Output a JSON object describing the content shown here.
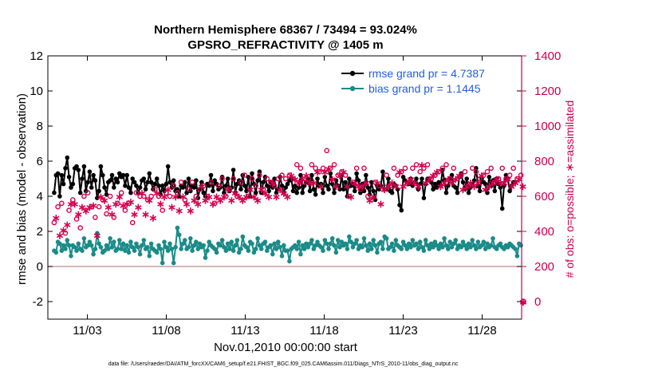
{
  "chart_data": {
    "type": "line",
    "title": "Northern Hemisphere 68367 / 73494 = 93.024%",
    "subtitle": "GPSRO_REFRACTIVITY @ 1405 m",
    "xlabel": "Nov.01,2010 00:00:00 start",
    "ylabel": "rmse and bias (model - observation)",
    "y2label": "# of obs: o=possible; ∗=assimilated",
    "footnote": "data file: /Users/raeder/DAI/ATM_forcXX/CAM6_setup/f.e21.FHIST_BGC.f09_025.CAM6assim.011/Diags_NTrS_2010-11/obs_diag_output.nc",
    "x_range_days": [
      0.5,
      30.5
    ],
    "ylim": [
      -3,
      12
    ],
    "y2lim": [
      -100,
      1400
    ],
    "x_ticks": [
      {
        "day": 3,
        "label": "11/03"
      },
      {
        "day": 8,
        "label": "11/08"
      },
      {
        "day": 13,
        "label": "11/13"
      },
      {
        "day": 18,
        "label": "11/18"
      },
      {
        "day": 23,
        "label": "11/23"
      },
      {
        "day": 28,
        "label": "11/28"
      }
    ],
    "y_ticks": [
      {
        "value": -2,
        "label": "-2"
      },
      {
        "value": 0,
        "label": "0"
      },
      {
        "value": 2,
        "label": "2"
      },
      {
        "value": 4,
        "label": "4"
      },
      {
        "value": 6,
        "label": "6"
      },
      {
        "value": 8,
        "label": "8"
      },
      {
        "value": 10,
        "label": "10"
      },
      {
        "value": 12,
        "label": "12"
      }
    ],
    "y2_ticks": [
      {
        "value": 0,
        "label": "0"
      },
      {
        "value": 200,
        "label": "200"
      },
      {
        "value": 400,
        "label": "400"
      },
      {
        "value": 600,
        "label": "600"
      },
      {
        "value": 800,
        "label": "800"
      },
      {
        "value": 1000,
        "label": "1000"
      },
      {
        "value": 1200,
        "label": "1200"
      },
      {
        "value": 1400,
        "label": "1400"
      }
    ],
    "zero_line_y": 0,
    "legend": {
      "placement": "top-right"
    },
    "series": [
      {
        "name": "rmse grand pr = 4.7387",
        "color": "#000000",
        "marker": "filled-circle",
        "axis": "left",
        "values": [
          4.2,
          5.2,
          5.3,
          4.0,
          5.2,
          4.7,
          5.6,
          6.2,
          5.1,
          4.5,
          4.7,
          5.6,
          5.7,
          5.5,
          4.2,
          5.0,
          5.7,
          4.3,
          4.8,
          5.4,
          4.5,
          5.2,
          4.9,
          3.9,
          4.3,
          5.7,
          5.2,
          4.5,
          4.1,
          4.8,
          4.9,
          5.2,
          4.5,
          5.0,
          4.8,
          5.3,
          5.1,
          5.2,
          4.6,
          5.2,
          4.5,
          4.2,
          5.0,
          4.8,
          4.6,
          4.2,
          4.5,
          4.9,
          5.0,
          4.4,
          4.8,
          5.3,
          4.8,
          4.4,
          4.7,
          5.0,
          4.6,
          4.1,
          4.6,
          4.3,
          4.7,
          5.7,
          4.8,
          4.5,
          4.9,
          4.3,
          4.4,
          4.0,
          4.6,
          4.5,
          4.8,
          4.2,
          5.0,
          4.3,
          4.6,
          4.5,
          4.9,
          3.9,
          4.4,
          4.8,
          4.2,
          4.0,
          4.7,
          4.6,
          5.2,
          4.3,
          4.9,
          4.7,
          4.4,
          4.5,
          5.1,
          4.2,
          4.6,
          5.0,
          4.3,
          4.5,
          5.5,
          4.2,
          4.7,
          4.9,
          4.4,
          5.2,
          4.6,
          4.3,
          5.1,
          4.0,
          5.3,
          4.7,
          4.2,
          4.9,
          5.4,
          4.2,
          4.8,
          5.1,
          4.6,
          4.3,
          4.8,
          4.5,
          5.0,
          4.2,
          4.4,
          5.1,
          4.6,
          4.2,
          4.5,
          4.7,
          4.9,
          5.0,
          4.3,
          4.6,
          4.2,
          4.5,
          5.2,
          4.2,
          4.6,
          4.8,
          5.0,
          4.3,
          5.2,
          4.4,
          4.1,
          5.0,
          4.6,
          4.7,
          4.2,
          5.1,
          4.6,
          4.4,
          5.3,
          4.7,
          4.2,
          4.9,
          4.6,
          4.4,
          5.2,
          4.4,
          4.8,
          4.0,
          5.0,
          4.6,
          4.7,
          4.3,
          5.3,
          4.9,
          4.2,
          4.7,
          4.3,
          5.2,
          4.5,
          4.1,
          4.8,
          4.3,
          3.8,
          4.6,
          4.4,
          4.6,
          5.4,
          4.4,
          4.4,
          5.0,
          4.3,
          4.2,
          4.7,
          4.6,
          4.4,
          3.5,
          3.2,
          5.1,
          4.9,
          4.8,
          4.7,
          5.0,
          4.6,
          4.8,
          5.0,
          4.4,
          4.7,
          5.0,
          3.9,
          4.7,
          5.0,
          4.9,
          4.8,
          4.4,
          4.7,
          4.5,
          4.8,
          4.6,
          5.5,
          4.9,
          4.2,
          4.6,
          5.0,
          5.2,
          4.6,
          4.5,
          4.2,
          5.1,
          5.3,
          4.8,
          4.4,
          5.0,
          4.2,
          4.5,
          4.7,
          4.9,
          5.6,
          4.6,
          4.3,
          5.0,
          4.8,
          4.7,
          4.2,
          5.1,
          4.6,
          4.9,
          4.3,
          5.0,
          4.7,
          4.5,
          3.3,
          4.6,
          5.2,
          5.0,
          4.3,
          4.6,
          4.8,
          4.8
        ]
      },
      {
        "name": "bias grand pr = 1.1445",
        "color": "#1a8b88",
        "marker": "filled-circle",
        "axis": "left",
        "values": [
          0.9,
          0.8,
          1.4,
          1.3,
          0.9,
          1.2,
          1.0,
          1.5,
          1.2,
          0.6,
          1.2,
          1.1,
          0.9,
          1.3,
          1.0,
          0.9,
          1.6,
          1.1,
          1.2,
          1.4,
          1.2,
          0.7,
          1.0,
          1.9,
          1.3,
          1.1,
          0.8,
          0.9,
          1.2,
          1.0,
          1.6,
          1.1,
          1.4,
          0.9,
          1.0,
          1.5,
          1.0,
          1.3,
          0.9,
          1.2,
          0.8,
          1.4,
          1.1,
          0.9,
          1.3,
          1.1,
          0.7,
          1.2,
          1.5,
          1.0,
          1.1,
          0.6,
          1.3,
          1.0,
          0.9,
          0.8,
          1.2,
          1.0,
          0.2,
          1.4,
          1.1,
          0.9,
          1.3,
          1.0,
          0.2,
          1.1,
          2.2,
          1.8,
          1.0,
          1.3,
          1.5,
          1.0,
          1.1,
          1.6,
          0.9,
          1.2,
          1.4,
          1.0,
          1.3,
          1.1,
          1.2,
          0.5,
          0.9,
          1.4,
          1.2,
          1.1,
          1.0,
          0.8,
          1.3,
          1.2,
          1.5,
          1.1,
          0.9,
          1.3,
          1.0,
          1.4,
          0.9,
          1.2,
          1.5,
          0.8,
          1.0,
          1.7,
          1.2,
          1.1,
          0.9,
          1.4,
          1.3,
          0.8,
          1.0,
          1.6,
          1.2,
          1.0,
          1.3,
          1.4,
          0.9,
          1.1,
          1.2,
          0.7,
          1.3,
          1.0,
          1.4,
          1.1,
          0.6,
          1.2,
          0.9,
          0.9,
          0.3,
          1.0,
          1.1,
          1.2,
          1.0,
          1.4,
          0.7,
          1.2,
          1.0,
          1.3,
          1.1,
          1.3,
          1.5,
          1.0,
          1.2,
          1.4,
          1.2,
          1.1,
          0.9,
          1.5,
          1.3,
          1.0,
          1.3,
          1.6,
          1.2,
          0.8,
          1.5,
          1.1,
          1.4,
          1.2,
          1.3,
          1.0,
          1.7,
          1.4,
          1.1,
          1.3,
          1.5,
          1.0,
          1.2,
          1.1,
          1.6,
          1.2,
          0.9,
          1.3,
          1.0,
          1.5,
          1.2,
          0.8,
          1.3,
          1.4,
          1.0,
          1.7,
          1.6,
          1.0,
          1.1,
          1.3,
          0.9,
          1.5,
          1.2,
          1.1,
          1.0,
          1.4,
          1.2,
          1.0,
          1.3,
          1.1,
          1.5,
          1.2,
          1.3,
          1.0,
          1.4,
          1.1,
          0.9,
          1.5,
          1.2,
          1.0,
          1.3,
          1.1,
          1.4,
          1.2,
          1.0,
          1.3,
          1.1,
          1.6,
          1.2,
          1.0,
          1.4,
          1.1,
          1.3,
          1.5,
          1.0,
          1.2,
          1.1,
          1.4,
          1.2,
          1.0,
          1.3,
          1.1,
          1.5,
          1.2,
          1.0,
          1.4,
          1.1,
          1.2,
          1.4,
          1.0,
          1.3,
          1.1,
          1.2,
          1.6,
          1.1,
          1.0,
          1.2,
          1.3,
          1.1,
          1.0,
          1.2,
          1.1,
          1.3,
          1.2,
          1.1,
          1.0,
          0.6,
          1.3,
          1.2
        ]
      },
      {
        "name": "possible",
        "color": "#d4004e",
        "marker": "open-circle",
        "axis": "right",
        "values": [
          450,
          510,
          540,
          400,
          560,
          440,
          390,
          480,
          520,
          610,
          580,
          600,
          470,
          540,
          420,
          580,
          600,
          560,
          620,
          580,
          540,
          590,
          480,
          420,
          540,
          650,
          580,
          620,
          500,
          580,
          600,
          540,
          480,
          600,
          560,
          640,
          620,
          590,
          520,
          600,
          560,
          610,
          450,
          540,
          620,
          580,
          600,
          660,
          600,
          540,
          580,
          620,
          600,
          520,
          640,
          660,
          600,
          600,
          520,
          640,
          620,
          680,
          600,
          580,
          660,
          640,
          620,
          560,
          680,
          640,
          580,
          600,
          640,
          560,
          680,
          620,
          600,
          600,
          640,
          700,
          660,
          620,
          600,
          640,
          680,
          600,
          560,
          640,
          660,
          620,
          700,
          640,
          600,
          680,
          640,
          620,
          700,
          660,
          600,
          640,
          680,
          620,
          720,
          640,
          600,
          680,
          700,
          640,
          660,
          620,
          720,
          680,
          640,
          660,
          700,
          640,
          680,
          720,
          660,
          640,
          700,
          680,
          720,
          660,
          700,
          640,
          720,
          760,
          700,
          740,
          780,
          720,
          760,
          740,
          680,
          760,
          700,
          720,
          780,
          720,
          760,
          780,
          740,
          700,
          760,
          780,
          860,
          800,
          760,
          740,
          780,
          700,
          720,
          760,
          740,
          780,
          720,
          700,
          600,
          640,
          680,
          720,
          760,
          700,
          640,
          700,
          760,
          720,
          600,
          620,
          580,
          640,
          680,
          720,
          660,
          600,
          640,
          680,
          720,
          700,
          660,
          720,
          760,
          700,
          720,
          780,
          740,
          700,
          760,
          720,
          680,
          740,
          760,
          720,
          780,
          700,
          740,
          820,
          760,
          720,
          780,
          740,
          700,
          760,
          720,
          780,
          740,
          700,
          760,
          720,
          780,
          740,
          700,
          720,
          760,
          740,
          700,
          760,
          720,
          680,
          740,
          700,
          660,
          720,
          760,
          700,
          740,
          720,
          700,
          760,
          720,
          680,
          740,
          700,
          760,
          720,
          680,
          740,
          700,
          720,
          760,
          720,
          700,
          740,
          720,
          700,
          760,
          720,
          700,
          740,
          720,
          700
        ]
      },
      {
        "name": "assimilated",
        "color": "#d4004e",
        "marker": "asterisk",
        "axis": "right",
        "values": [
          420,
          480,
          500,
          380,
          520,
          410,
          360,
          440,
          480,
          560,
          540,
          560,
          430,
          500,
          390,
          540,
          560,
          520,
          580,
          540,
          500,
          550,
          440,
          380,
          500,
          600,
          540,
          580,
          460,
          540,
          560,
          500,
          440,
          560,
          520,
          600,
          580,
          550,
          480,
          560,
          520,
          570,
          410,
          500,
          580,
          540,
          560,
          620,
          560,
          500,
          540,
          580,
          560,
          480,
          600,
          620,
          560,
          560,
          480,
          600,
          580,
          640,
          560,
          540,
          620,
          600,
          580,
          520,
          640,
          600,
          540,
          560,
          600,
          520,
          640,
          580,
          560,
          560,
          600,
          660,
          620,
          580,
          560,
          600,
          640,
          560,
          520,
          600,
          620,
          580,
          660,
          600,
          560,
          640,
          600,
          580,
          660,
          620,
          560,
          600,
          640,
          580,
          680,
          600,
          560,
          640,
          660,
          600,
          620,
          580,
          680,
          640,
          600,
          620,
          660,
          600,
          640,
          680,
          620,
          600,
          660,
          640,
          680,
          620,
          660,
          600,
          680,
          720,
          660,
          700,
          740,
          680,
          720,
          700,
          640,
          720,
          660,
          680,
          740,
          680,
          720,
          740,
          700,
          660,
          720,
          740,
          820,
          760,
          720,
          700,
          740,
          660,
          680,
          720,
          700,
          740,
          680,
          660,
          560,
          600,
          640,
          680,
          720,
          660,
          600,
          660,
          720,
          680,
          560,
          580,
          540,
          600,
          640,
          680,
          620,
          560,
          600,
          640,
          680,
          660,
          620,
          680,
          720,
          660,
          680,
          740,
          700,
          660,
          720,
          680,
          640,
          700,
          720,
          680,
          740,
          660,
          700,
          780,
          720,
          680,
          740,
          700,
          660,
          720,
          680,
          740,
          700,
          660,
          720,
          680,
          740,
          700,
          660,
          680,
          720,
          700,
          660,
          720,
          680,
          640,
          700,
          660,
          620,
          680,
          720,
          660,
          700,
          680,
          660,
          720,
          680,
          640,
          700,
          660,
          720,
          680,
          640,
          700,
          660,
          680,
          720,
          680,
          660,
          700,
          680,
          660,
          720,
          680,
          660,
          700,
          680,
          660
        ]
      }
    ],
    "right_axis_outlier": {
      "day_position": "right-edge",
      "value": 0
    }
  }
}
